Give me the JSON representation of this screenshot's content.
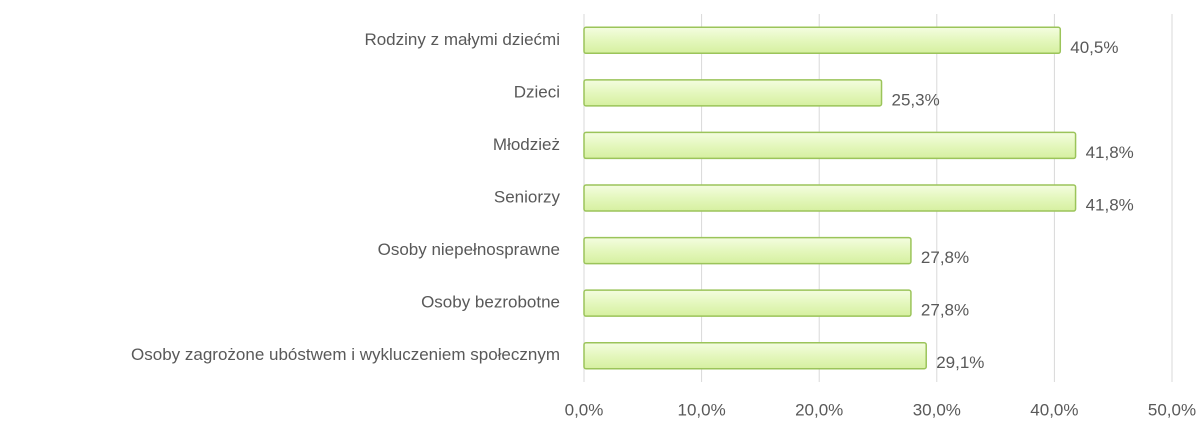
{
  "chart_data": {
    "type": "barh",
    "categories": [
      "Rodziny z małymi dziećmi",
      "Dzieci",
      "Młodzież",
      "Seniorzy",
      "Osoby niepełnosprawne",
      "Osoby bezrobotne",
      "Osoby zagrożone ubóstwem i wykluczeniem społecznym"
    ],
    "values": [
      40.5,
      25.3,
      41.8,
      41.8,
      27.8,
      27.8,
      29.1
    ],
    "value_labels": [
      "40,5%",
      "25,3%",
      "41,8%",
      "41,8%",
      "27,8%",
      "27,8%",
      "29,1%"
    ],
    "color": "#e4f7bd",
    "xlim": [
      0,
      50
    ],
    "xticks": [
      {
        "value": 0,
        "label": "0,0%"
      },
      {
        "value": 10,
        "label": "10,0%"
      },
      {
        "value": 20,
        "label": "20,0%"
      },
      {
        "value": 30,
        "label": "30,0%"
      },
      {
        "value": 40,
        "label": "40,0%"
      },
      {
        "value": 50,
        "label": "50,0%"
      }
    ],
    "grid": true
  }
}
